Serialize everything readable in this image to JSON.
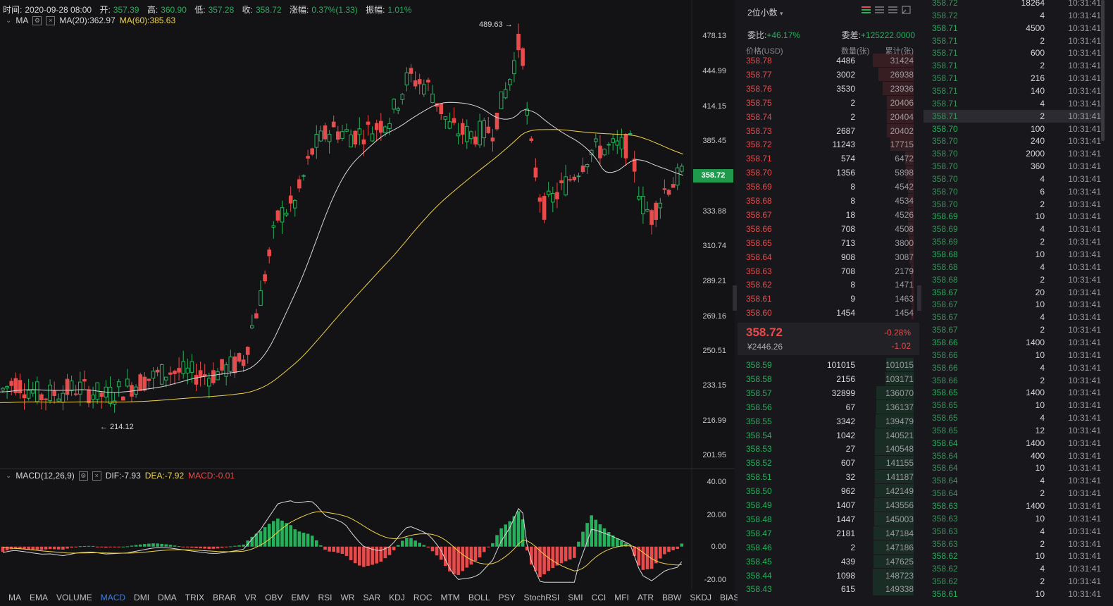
{
  "infobar": {
    "time_label": "时间:",
    "time": "2020-09-28 08:00",
    "open_label": "开:",
    "open": "357.39",
    "high_label": "高:",
    "high": "360.90",
    "low_label": "低:",
    "low": "357.28",
    "close_label": "收:",
    "close": "358.72",
    "chg_label": "涨幅:",
    "chg": "0.37%(1.33)",
    "amp_label": "振幅:",
    "amp": "1.01%"
  },
  "ma_row": {
    "name": "MA",
    "ma20": "MA(20):362.97",
    "ma60": "MA(60):385.63"
  },
  "macd_row": {
    "name": "MACD(12,26,9)",
    "dif": "DIF:-7.93",
    "dea": "DEA:-7.92",
    "macd": "MACD:-0.01"
  },
  "price_axis": [
    "478.13",
    "444.99",
    "414.15",
    "385.45",
    "358.72",
    "333.88",
    "310.74",
    "289.21",
    "269.16",
    "250.51",
    "233.15",
    "216.99",
    "201.95"
  ],
  "macd_axis": [
    "40.00",
    "20.00",
    "0.00",
    "-20.00"
  ],
  "annotations": {
    "high": "489.63 →",
    "low": "← 214.12"
  },
  "last_price_tag": "358.72",
  "colors": {
    "up": "#26b05a",
    "down": "#e84b4b",
    "ma20": "#d8d8d8",
    "ma60": "#f0d34c",
    "active_tab": "#3a7fe0"
  },
  "indicator_tabs": [
    "MA",
    "EMA",
    "VOLUME",
    "MACD",
    "DMI",
    "DMA",
    "TRIX",
    "BRAR",
    "VR",
    "OBV",
    "EMV",
    "RSI",
    "WR",
    "SAR",
    "KDJ",
    "ROC",
    "MTM",
    "BOLL",
    "PSY",
    "StochRSI",
    "SMI",
    "CCI",
    "MFI",
    "ATR",
    "BBW",
    "SKDJ",
    "BIAS"
  ],
  "active_tab": "MACD",
  "book": {
    "precision": "2位小数",
    "ratio_label": "委比:",
    "ratio": "+46.17%",
    "diff_label": "委差:",
    "diff": "+125222.0000",
    "col_price": "价格(USD)",
    "col_qty": "数量(张)",
    "col_cum": "累计(张)",
    "asks": [
      [
        "358.78",
        "4486",
        "31424"
      ],
      [
        "358.77",
        "3002",
        "26938"
      ],
      [
        "358.76",
        "3530",
        "23936"
      ],
      [
        "358.75",
        "2",
        "20406"
      ],
      [
        "358.74",
        "2",
        "20404"
      ],
      [
        "358.73",
        "2687",
        "20402"
      ],
      [
        "358.72",
        "11243",
        "17715"
      ],
      [
        "358.71",
        "574",
        "6472"
      ],
      [
        "358.70",
        "1356",
        "5898"
      ],
      [
        "358.69",
        "8",
        "4542"
      ],
      [
        "358.68",
        "8",
        "4534"
      ],
      [
        "358.67",
        "18",
        "4526"
      ],
      [
        "358.66",
        "708",
        "4508"
      ],
      [
        "358.65",
        "713",
        "3800"
      ],
      [
        "358.64",
        "908",
        "3087"
      ],
      [
        "358.63",
        "708",
        "2179"
      ],
      [
        "358.62",
        "8",
        "1471"
      ],
      [
        "358.61",
        "9",
        "1463"
      ],
      [
        "358.60",
        "1454",
        "1454"
      ]
    ],
    "last": "358.72",
    "last_cny": "¥2446.26",
    "last_pct": "-0.28%",
    "last_chg": "-1.02",
    "bids": [
      [
        "358.59",
        "101015",
        "101015"
      ],
      [
        "358.58",
        "2156",
        "103171"
      ],
      [
        "358.57",
        "32899",
        "136070"
      ],
      [
        "358.56",
        "67",
        "136137"
      ],
      [
        "358.55",
        "3342",
        "139479"
      ],
      [
        "358.54",
        "1042",
        "140521"
      ],
      [
        "358.53",
        "27",
        "140548"
      ],
      [
        "358.52",
        "607",
        "141155"
      ],
      [
        "358.51",
        "32",
        "141187"
      ],
      [
        "358.50",
        "962",
        "142149"
      ],
      [
        "358.49",
        "1407",
        "143556"
      ],
      [
        "358.48",
        "1447",
        "145003"
      ],
      [
        "358.47",
        "2181",
        "147184"
      ],
      [
        "358.46",
        "2",
        "147186"
      ],
      [
        "358.45",
        "439",
        "147625"
      ],
      [
        "358.44",
        "1098",
        "148723"
      ],
      [
        "358.43",
        "615",
        "149338"
      ]
    ]
  },
  "trades": [
    [
      "358.72",
      "18264",
      "10:31:41",
      "r"
    ],
    [
      "358.72",
      "4",
      "10:31:41",
      "r"
    ],
    [
      "358.71",
      "4500",
      "10:31:41",
      "g"
    ],
    [
      "358.71",
      "2",
      "10:31:41",
      "r"
    ],
    [
      "358.71",
      "600",
      "10:31:41",
      "r"
    ],
    [
      "358.71",
      "2",
      "10:31:41",
      "r"
    ],
    [
      "358.71",
      "216",
      "10:31:41",
      "r"
    ],
    [
      "358.71",
      "140",
      "10:31:41",
      "r"
    ],
    [
      "358.71",
      "4",
      "10:31:41",
      "r"
    ],
    [
      "358.71",
      "2",
      "10:31:41",
      "r"
    ],
    [
      "358.70",
      "100",
      "10:31:41",
      "g"
    ],
    [
      "358.70",
      "240",
      "10:31:41",
      "r"
    ],
    [
      "358.70",
      "2000",
      "10:31:41",
      "r"
    ],
    [
      "358.70",
      "360",
      "10:31:41",
      "r"
    ],
    [
      "358.70",
      "4",
      "10:31:41",
      "r"
    ],
    [
      "358.70",
      "6",
      "10:31:41",
      "r"
    ],
    [
      "358.70",
      "2",
      "10:31:41",
      "r"
    ],
    [
      "358.69",
      "10",
      "10:31:41",
      "g"
    ],
    [
      "358.69",
      "4",
      "10:31:41",
      "r"
    ],
    [
      "358.69",
      "2",
      "10:31:41",
      "r"
    ],
    [
      "358.68",
      "10",
      "10:31:41",
      "g"
    ],
    [
      "358.68",
      "4",
      "10:31:41",
      "r"
    ],
    [
      "358.68",
      "2",
      "10:31:41",
      "r"
    ],
    [
      "358.67",
      "20",
      "10:31:41",
      "g"
    ],
    [
      "358.67",
      "10",
      "10:31:41",
      "r"
    ],
    [
      "358.67",
      "4",
      "10:31:41",
      "r"
    ],
    [
      "358.67",
      "2",
      "10:31:41",
      "r"
    ],
    [
      "358.66",
      "1400",
      "10:31:41",
      "g"
    ],
    [
      "358.66",
      "10",
      "10:31:41",
      "r"
    ],
    [
      "358.66",
      "4",
      "10:31:41",
      "r"
    ],
    [
      "358.66",
      "2",
      "10:31:41",
      "r"
    ],
    [
      "358.65",
      "1400",
      "10:31:41",
      "g"
    ],
    [
      "358.65",
      "10",
      "10:31:41",
      "r"
    ],
    [
      "358.65",
      "4",
      "10:31:41",
      "r"
    ],
    [
      "358.65",
      "12",
      "10:31:41",
      "r"
    ],
    [
      "358.64",
      "1400",
      "10:31:41",
      "g"
    ],
    [
      "358.64",
      "400",
      "10:31:41",
      "r"
    ],
    [
      "358.64",
      "10",
      "10:31:41",
      "r"
    ],
    [
      "358.64",
      "4",
      "10:31:41",
      "r"
    ],
    [
      "358.64",
      "2",
      "10:31:41",
      "r"
    ],
    [
      "358.63",
      "1400",
      "10:31:41",
      "g"
    ],
    [
      "358.63",
      "10",
      "10:31:41",
      "r"
    ],
    [
      "358.63",
      "4",
      "10:31:41",
      "r"
    ],
    [
      "358.63",
      "2",
      "10:31:41",
      "r"
    ],
    [
      "358.62",
      "10",
      "10:31:41",
      "g"
    ],
    [
      "358.62",
      "4",
      "10:31:41",
      "r"
    ],
    [
      "358.62",
      "2",
      "10:31:41",
      "r"
    ],
    [
      "358.61",
      "10",
      "10:31:41",
      "g"
    ]
  ],
  "highlighted_trade": 9
}
